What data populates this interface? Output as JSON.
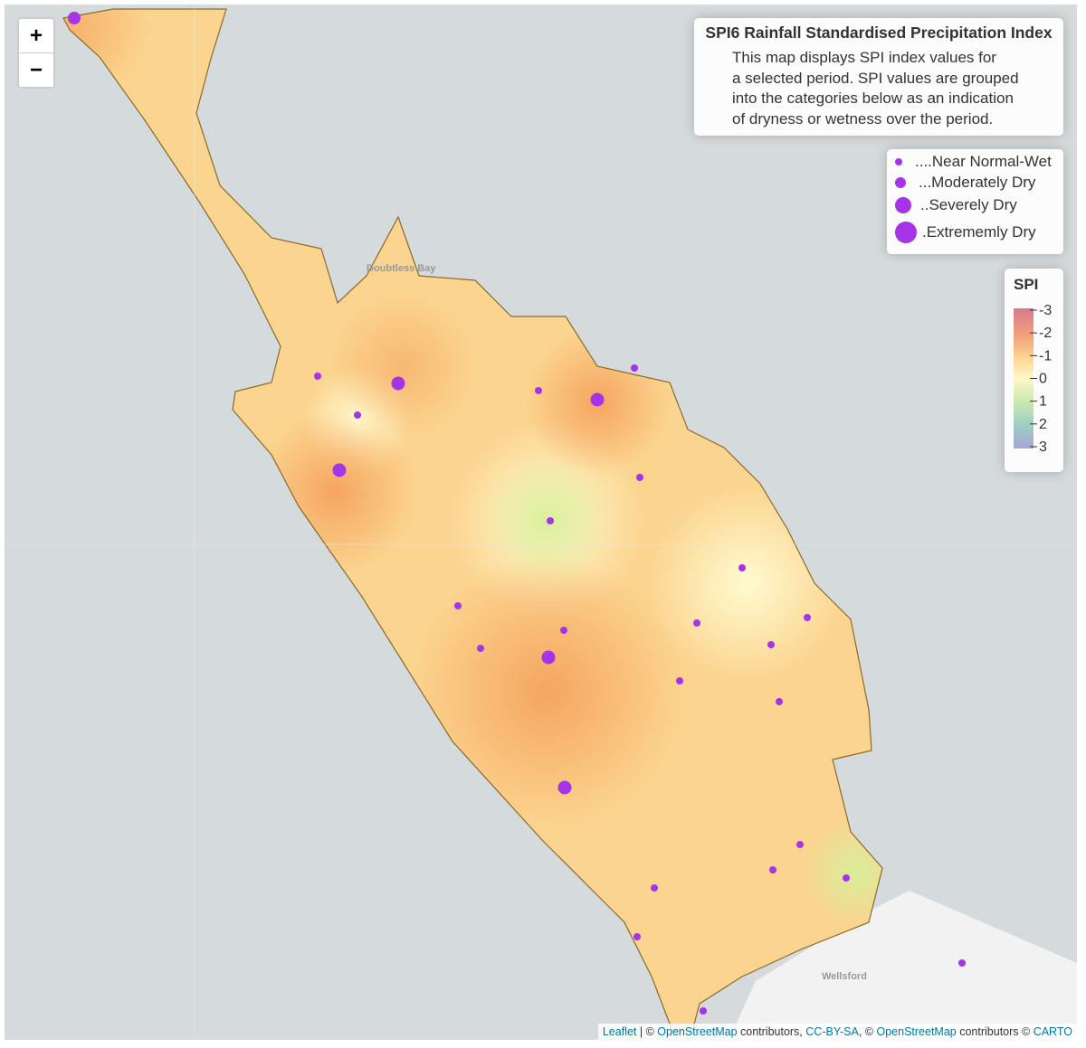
{
  "zoom": {
    "in": "+",
    "out": "−"
  },
  "info": {
    "title": "SPI6 Rainfall Standardised Precipitation Index",
    "lines": [
      "This map displays SPI index values for",
      "a selected period. SPI values are grouped",
      "into the categories below as an indication",
      "of dryness or wetness over the period."
    ]
  },
  "categories": [
    "....Near Normal-Wet",
    "...Moderately Dry",
    "..Severely Dry",
    ".Extrememly Dry"
  ],
  "scale": {
    "title": "SPI",
    "ticks": [
      -3,
      -2,
      -1,
      0,
      1,
      2,
      3
    ]
  },
  "places": [
    "Doubtless Bay",
    "Wellsford"
  ],
  "attribution": {
    "leaflet": "Leaflet",
    "sep1": " | © ",
    "osm1": "OpenStreetMap",
    "mid": " contributors, ",
    "license": "CC-BY-SA",
    "sep2": ", © ",
    "osm2": "OpenStreetMap",
    "mid2": " contributors © ",
    "carto": "CARTO"
  }
}
